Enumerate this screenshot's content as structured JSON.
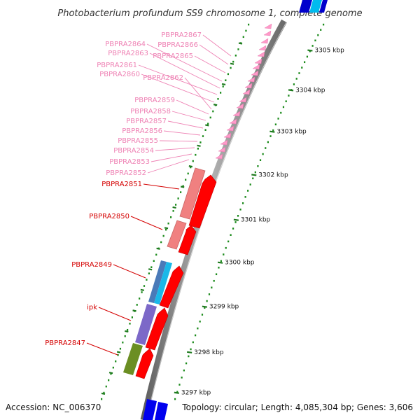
{
  "title": "Photobacterium profundum SS9 chromosome 1, complete genome",
  "footer": {
    "accession": "Accession: NC_006370",
    "summary": "Topology: circular; Length: 4,085,304 bp; Genes: 3,606"
  },
  "colors": {
    "backbone": "#8a8a8a",
    "tick_dot": "#1a8a1a",
    "tick_dash": "#1e7a1e",
    "label_faded": "#ee82b4",
    "label_active": "#d40000",
    "gene_forward": "#ff0000",
    "gene_faded": "#ff99c8"
  },
  "scale_labels": [
    {
      "text": "3305 kbp"
    },
    {
      "text": "3304 kbp"
    },
    {
      "text": "3303 kbp"
    },
    {
      "text": "3302 kbp"
    },
    {
      "text": "3301 kbp"
    },
    {
      "text": "3300 kbp"
    },
    {
      "text": "3299 kbp"
    },
    {
      "text": "3298 kbp"
    },
    {
      "text": "3297 kbp"
    }
  ],
  "gene_labels_faded": [
    "PBPRA2867",
    "PBPRA2866",
    "PBPRA2865",
    "PBPRA2864",
    "PBPRA2863",
    "PBPRA2861",
    "PBPRA2860",
    "PBPRA2862",
    "PBPRA2859",
    "PBPRA2858",
    "PBPRA2857",
    "PBPRA2856",
    "PBPRA2855",
    "PBPRA2854",
    "PBPRA2853",
    "PBPRA2852"
  ],
  "gene_labels_active": [
    "PBPRA2851",
    "PBPRA2850",
    "PBPRA2849",
    "ipk",
    "PBPRA2847"
  ]
}
